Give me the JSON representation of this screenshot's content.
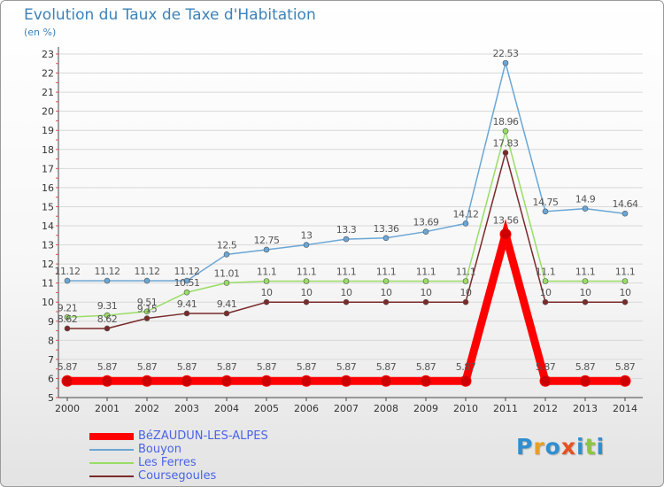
{
  "title": "Evolution du Taux de Taxe d'Habitation",
  "subtitle": "(en %)",
  "logo": {
    "text": "Proxiti",
    "colors": [
      "#2f8fd0",
      "#e8a020",
      "#2f8fd0",
      "#e8501e",
      "#2f8fd0",
      "#8cc63f",
      "#2f8fd0"
    ]
  },
  "chart_data": {
    "type": "line",
    "x": [
      2000,
      2001,
      2002,
      2003,
      2004,
      2005,
      2006,
      2007,
      2008,
      2009,
      2010,
      2011,
      2012,
      2013,
      2014
    ],
    "ylim": [
      5,
      23
    ],
    "yticks": [
      5,
      6,
      7,
      8,
      9,
      10,
      11,
      12,
      13,
      14,
      15,
      16,
      17,
      18,
      19,
      20,
      21,
      22,
      23
    ],
    "grid": "horizontal",
    "legend_position": "bottom-left",
    "series": [
      {
        "name": "BéZAUDUN-LES-ALPES",
        "color": "#ff0000",
        "values": [
          5.87,
          5.87,
          5.87,
          5.87,
          5.87,
          5.87,
          5.87,
          5.87,
          5.87,
          5.87,
          5.87,
          13.56,
          5.87,
          5.87,
          5.87
        ],
        "labels": [
          "5.87",
          "5.87",
          "5.87",
          "5.87",
          "5.87",
          "5.87",
          "5.87",
          "5.87",
          "5.87",
          "5.87",
          "5.87",
          "13.56",
          "5.87",
          "5.87",
          "5.87"
        ]
      },
      {
        "name": "Bouyon",
        "color": "#6aa6d6",
        "values": [
          11.12,
          11.12,
          11.12,
          11.12,
          12.5,
          12.75,
          13,
          13.3,
          13.36,
          13.69,
          14.12,
          22.53,
          14.75,
          14.9,
          14.64
        ],
        "labels": [
          "11.12",
          "11.12",
          "11.12",
          "11.12",
          "12.5",
          "12.75",
          "13",
          "13.3",
          "13.36",
          "13.69",
          "14.12",
          "22.53",
          "14.75",
          "14.9",
          "14.64"
        ]
      },
      {
        "name": "Les Ferres",
        "color": "#99dd66",
        "values": [
          9.21,
          9.31,
          9.51,
          10.51,
          11.01,
          11.1,
          11.1,
          11.1,
          11.1,
          11.1,
          11.1,
          18.96,
          11.1,
          11.1,
          11.1
        ],
        "labels": [
          "9.21",
          "9.31",
          "9.51",
          "10.51",
          "11.01",
          "11.1",
          "11.1",
          "11.1",
          "11.1",
          "11.1",
          "11.1",
          "18.96",
          "11.1",
          "11.1",
          "11.1"
        ]
      },
      {
        "name": "Coursegoules",
        "color": "#7a2a2a",
        "values": [
          8.62,
          8.62,
          9.15,
          9.41,
          9.41,
          10,
          10,
          10,
          10,
          10,
          10,
          17.83,
          10,
          10,
          10
        ],
        "labels": [
          "8.62",
          "8.62",
          "9.15",
          "9.41",
          "9.41",
          "10",
          "10",
          "10",
          "10",
          "10",
          "10",
          "17.83",
          "10",
          "10",
          "10"
        ]
      }
    ]
  }
}
